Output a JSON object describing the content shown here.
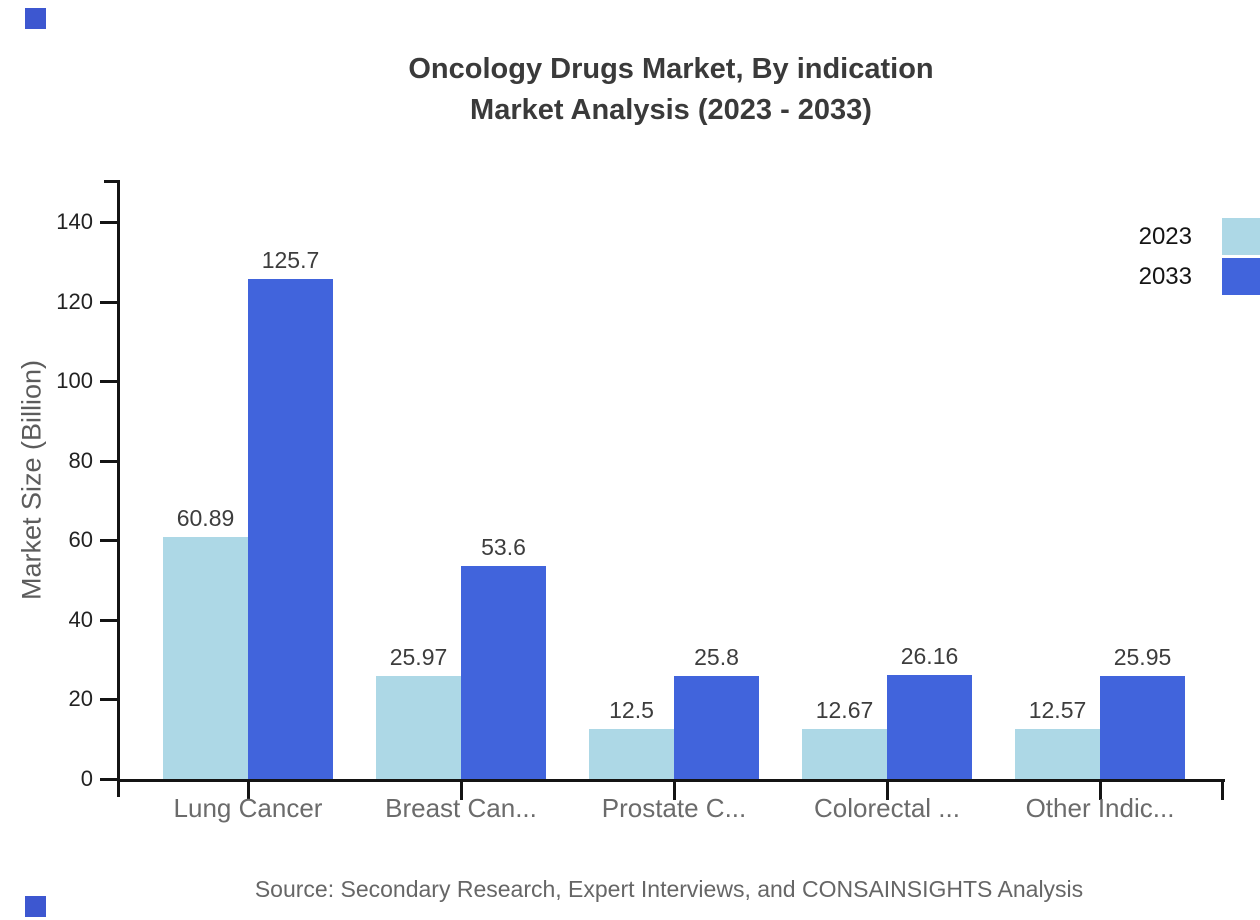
{
  "title": {
    "line1": "Oncology Drugs Market, By indication",
    "line2": "Market Analysis (2023 - 2033)"
  },
  "source": "Source: Secondary Research, Expert Interviews, and CONSAINSIGHTS Analysis",
  "chart_data": {
    "type": "bar",
    "title": "Oncology Drugs Market, By indication Market Analysis (2023 - 2033)",
    "xlabel": "",
    "ylabel": "Market Size (Billion)",
    "categories": [
      "Lung Cancer",
      "Breast Can...",
      "Prostate C...",
      "Colorectal ...",
      "Other Indic..."
    ],
    "series": [
      {
        "name": "2023",
        "color": "#ADD8E6",
        "values": [
          60.89,
          25.97,
          12.5,
          12.67,
          12.57
        ]
      },
      {
        "name": "2033",
        "color": "#4164DC",
        "values": [
          125.7,
          53.6,
          25.8,
          26.16,
          25.95
        ]
      }
    ],
    "yticks": [
      0,
      20,
      40,
      60,
      80,
      100,
      120,
      140
    ],
    "ylim": [
      0,
      151
    ],
    "grid": false,
    "legend_position": "top-right",
    "value_labels": true,
    "axis_color": "#141414"
  },
  "decor": {
    "corner_mark_color": "#3D57D0"
  }
}
